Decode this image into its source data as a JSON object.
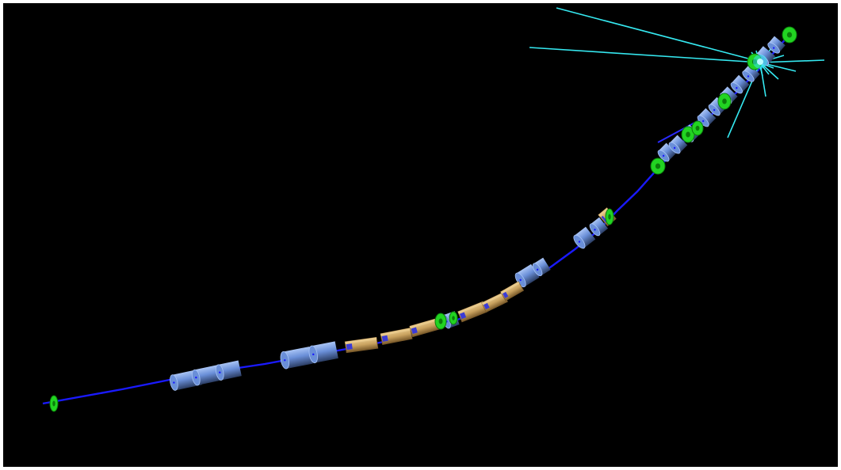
{
  "scene": {
    "background": "#000000",
    "frame": "#ffffff",
    "colors": {
      "beam_line": "#1a1aff",
      "quadrupole_body": "#6a8fd8",
      "quadrupole_dark": "#2b3d63",
      "quadrupole_light": "#a9c4f5",
      "dipole_body": "#c9a25f",
      "dipole_dark": "#7a5a2a",
      "dipole_light": "#e8c98b",
      "dipole_inner": "#3b3bd6",
      "collimator": "#22d422",
      "collimator_dark": "#0b7d0b",
      "particle_spray": "#35e8f0",
      "stray_track": "#2a2aff"
    },
    "icons": {
      "quadrupole": "quadrupole-magnet-icon",
      "dipole": "dipole-magnet-icon",
      "collimator": "collimator-icon"
    }
  }
}
